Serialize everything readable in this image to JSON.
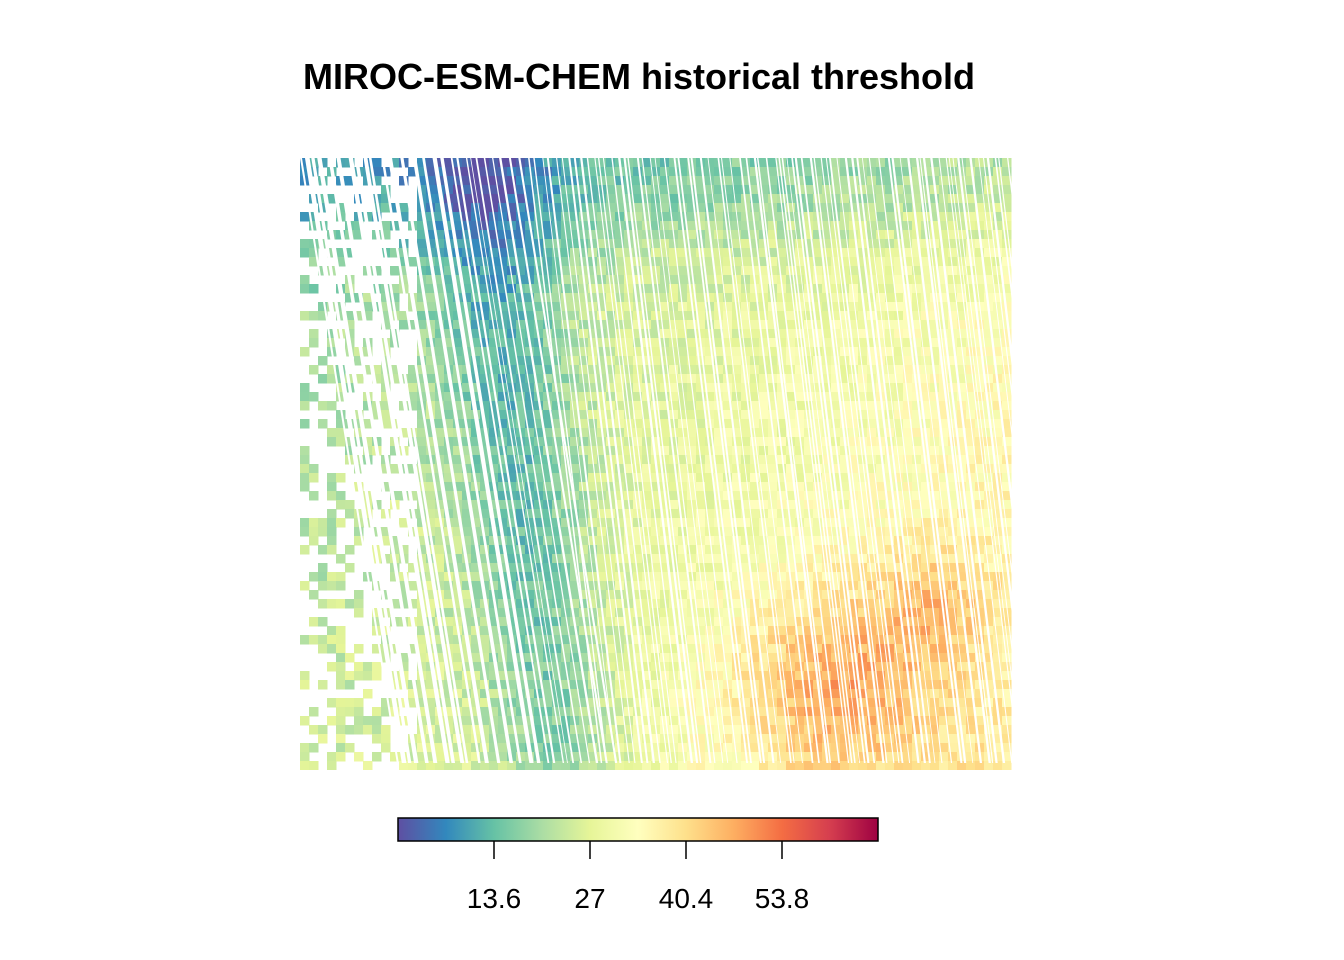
{
  "chart_data": {
    "type": "heatmap",
    "title": "MIROC-ESM-CHEM historical threshold",
    "xlabel": "",
    "ylabel": "",
    "legend": {
      "placement": "bottom",
      "orientation": "horizontal",
      "palette": [
        "#5E4FA2",
        "#3288BD",
        "#66C2A5",
        "#ABDDA4",
        "#E6F598",
        "#FFFFBF",
        "#FEE08B",
        "#FDAE61",
        "#F46D43",
        "#D53E4F",
        "#9E0142"
      ],
      "range": [
        0.2,
        67.2
      ],
      "ticks": [
        13.6,
        27,
        40.4,
        53.8
      ],
      "tick_labels": [
        "13.6",
        "27",
        "40.4",
        "53.8"
      ]
    },
    "grid": false,
    "axes_shown": false
  }
}
